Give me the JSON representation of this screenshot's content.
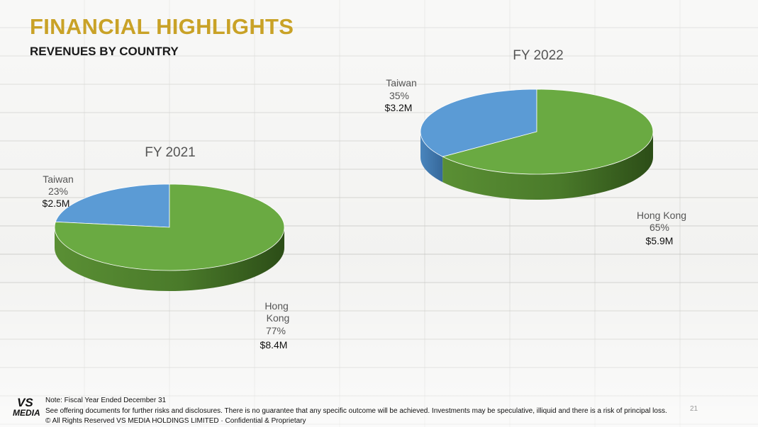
{
  "header": {
    "title": "FINANCIAL HIGHLIGHTS",
    "subtitle": "REVENUES BY COUNTRY"
  },
  "colors": {
    "hong_kong": "#6aaa42",
    "taiwan": "#5b9bd5",
    "title": "#c9a227"
  },
  "chart_data": [
    {
      "type": "pie",
      "title": "FY 2021",
      "slices": [
        {
          "label": "Taiwan",
          "percent": "23%",
          "amount": "$2.5M",
          "value": 23
        },
        {
          "label": "Hong Kong",
          "percent": "77%",
          "amount": "$8.4M",
          "value": 77
        }
      ]
    },
    {
      "type": "pie",
      "title": "FY 2022",
      "slices": [
        {
          "label": "Taiwan",
          "percent": "35%",
          "amount": "$3.2M",
          "value": 35
        },
        {
          "label": "Hong Kong",
          "percent": "65%",
          "amount": "$5.9M",
          "value": 65
        }
      ]
    }
  ],
  "footer": {
    "note": "Note: Fiscal Year Ended December 31",
    "disclaimer": "See offering documents for further risks and disclosures.  There is no guarantee that any specific outcome will be achieved.   Investments may be speculative, illiquid and there is a risk of principal loss.",
    "copyright": "© All Rights Reserved VS MEDIA HOLDINGS LIMITED · Confidential & Proprietary",
    "logo_line1": "VS",
    "logo_line2": "MEDIA",
    "page_number": "21"
  }
}
